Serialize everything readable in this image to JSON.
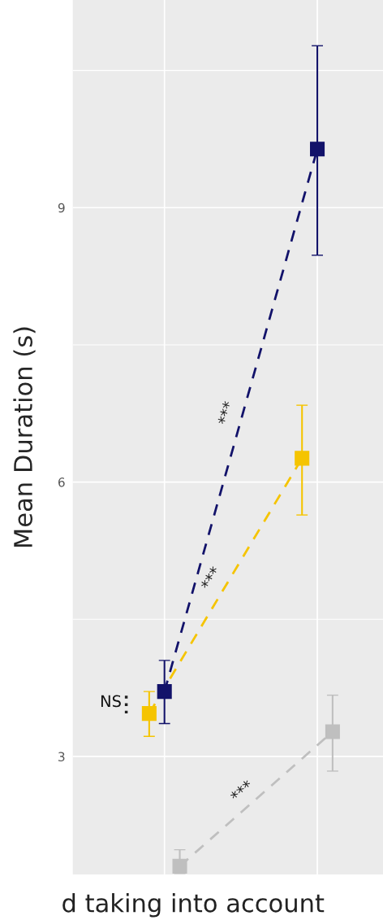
{
  "chart_data": {
    "type": "line",
    "ylabel": "Mean Duration (s)",
    "categories": [
      null,
      null
    ],
    "series": [
      {
        "color": "#f5c400",
        "values": [
          3.47,
          6.26
        ],
        "errors": [
          [
            3.22,
            3.71
          ],
          [
            5.64,
            6.84
          ]
        ]
      },
      {
        "color": "#12126a",
        "values": [
          3.71,
          9.64
        ],
        "errors": [
          [
            3.36,
            4.05
          ],
          [
            8.48,
            10.77
          ]
        ]
      },
      {
        "color": "#bfbfbf",
        "values": [
          1.8,
          3.27
        ],
        "errors": [
          [
            1.72,
            1.98
          ],
          [
            2.84,
            3.67
          ]
        ]
      }
    ],
    "ylim": [
      1.71,
      11.27
    ],
    "yticks": [
      3,
      6,
      9
    ],
    "grid": true,
    "tick_labels": "y",
    "marker": "square",
    "line_style": "dashed",
    "legend": false,
    "annotations": [
      "***",
      "***",
      "***",
      "NS",
      "d taking into account"
    ]
  }
}
